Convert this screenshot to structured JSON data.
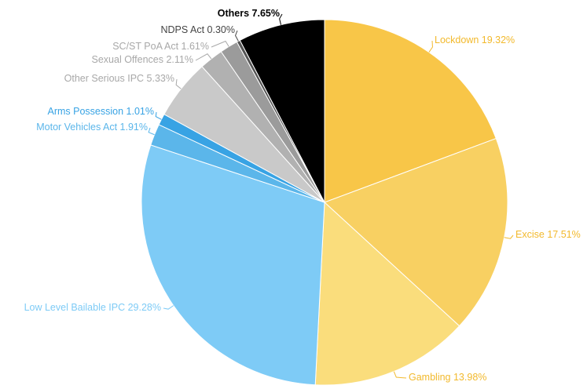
{
  "chart_data": {
    "type": "pie",
    "categories": [
      "Lockdown",
      "Excise",
      "Gambling",
      "Low Level Bailable IPC",
      "Motor Vehicles Act",
      "Arms Possession",
      "Other Serious IPC",
      "Sexual Offences",
      "SC/ST PoA Act",
      "NDPS Act",
      "Others"
    ],
    "values": [
      19.32,
      17.51,
      13.98,
      29.28,
      1.91,
      1.01,
      5.33,
      2.11,
      1.61,
      0.3,
      7.65
    ],
    "value_labels": [
      "19.32%",
      "17.51%",
      "13.98%",
      "29.28%",
      "1.91%",
      "1.01%",
      "5.33%",
      "2.11%",
      "1.61%",
      "0.30%",
      "7.65%"
    ],
    "colors": [
      "#f8c648",
      "#f8d062",
      "#fadd7c",
      "#7ecbf6",
      "#5bb6ea",
      "#38a3e4",
      "#c9c9c9",
      "#b1b1b1",
      "#9b9b9b",
      "#555555",
      "#000000"
    ]
  }
}
